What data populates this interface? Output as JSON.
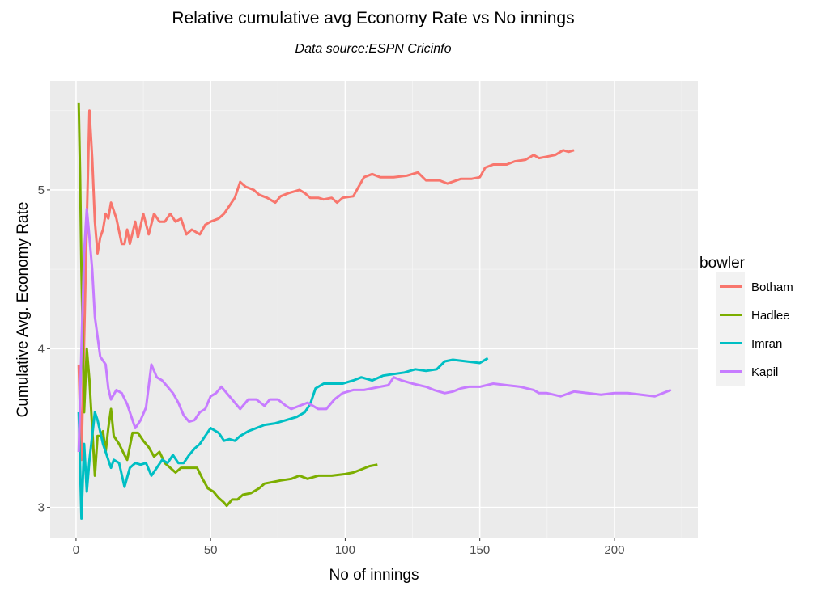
{
  "chart_data": {
    "type": "line",
    "title": "Relative cumulative avg Economy Rate vs No innings",
    "subtitle": "Data source:ESPN Cricinfo",
    "xlabel": "No of innings",
    "ylabel": "Cumulative Avg. Economy Rate",
    "xlim": [
      -9.6,
      231
    ],
    "ylim": [
      2.81,
      5.687
    ],
    "x_ticks": [
      0,
      50,
      100,
      150,
      200
    ],
    "x_tick_labels": [
      "0",
      "50",
      "100",
      "150",
      "200"
    ],
    "y_ticks": [
      3,
      4,
      5
    ],
    "y_tick_labels": [
      "3",
      "4",
      "5"
    ],
    "grid": true,
    "legend": {
      "title": "bowler",
      "placement": "right"
    },
    "series": [
      {
        "name": "Botham",
        "color": "#F8766D",
        "x": [
          1,
          2,
          4,
          5,
          6,
          7,
          8,
          9,
          10,
          11,
          12,
          13,
          15,
          17,
          18,
          19,
          20,
          22,
          23,
          25,
          27,
          29,
          31,
          33,
          35,
          37,
          39,
          41,
          43,
          46,
          48,
          50,
          53,
          55,
          57,
          59,
          61,
          63,
          66,
          68,
          71,
          74,
          76,
          79,
          83,
          85,
          87,
          90,
          92,
          95,
          97,
          99,
          103,
          105,
          107,
          110,
          113,
          118,
          123,
          127,
          130,
          135,
          138,
          143,
          147,
          150,
          152,
          155,
          160,
          163,
          167,
          170,
          172,
          175,
          178,
          181,
          183,
          185
        ],
        "y": [
          3.9,
          3.3,
          4.8,
          5.5,
          5.2,
          4.8,
          4.6,
          4.7,
          4.75,
          4.85,
          4.82,
          4.92,
          4.82,
          4.66,
          4.66,
          4.75,
          4.66,
          4.8,
          4.7,
          4.85,
          4.72,
          4.85,
          4.8,
          4.8,
          4.85,
          4.8,
          4.82,
          4.72,
          4.75,
          4.72,
          4.78,
          4.8,
          4.82,
          4.85,
          4.9,
          4.95,
          5.05,
          5.02,
          5.0,
          4.97,
          4.95,
          4.92,
          4.96,
          4.98,
          5.0,
          4.98,
          4.95,
          4.95,
          4.94,
          4.95,
          4.92,
          4.95,
          4.96,
          5.02,
          5.08,
          5.1,
          5.08,
          5.08,
          5.09,
          5.11,
          5.06,
          5.06,
          5.04,
          5.07,
          5.07,
          5.08,
          5.14,
          5.16,
          5.16,
          5.18,
          5.19,
          5.22,
          5.2,
          5.21,
          5.22,
          5.25,
          5.24,
          5.25
        ]
      },
      {
        "name": "Hadlee",
        "color": "#7CAE00",
        "x": [
          1,
          1.5,
          2,
          3,
          4,
          5,
          6,
          7,
          8,
          9,
          10,
          11,
          12,
          13,
          14,
          16,
          18,
          19,
          21,
          23,
          25,
          27,
          29,
          31,
          33,
          35,
          37,
          39,
          42,
          45,
          47,
          49,
          51,
          53,
          55,
          56,
          58,
          60,
          62,
          65,
          68,
          70,
          73,
          76,
          80,
          83,
          86,
          90,
          95,
          100,
          103,
          106,
          109,
          112
        ],
        "y": [
          5.55,
          5.1,
          4.5,
          3.6,
          4.0,
          3.8,
          3.5,
          3.2,
          3.45,
          3.45,
          3.48,
          3.35,
          3.5,
          3.62,
          3.45,
          3.4,
          3.33,
          3.3,
          3.47,
          3.47,
          3.42,
          3.38,
          3.32,
          3.35,
          3.28,
          3.25,
          3.22,
          3.25,
          3.25,
          3.25,
          3.18,
          3.12,
          3.1,
          3.06,
          3.03,
          3.01,
          3.05,
          3.05,
          3.08,
          3.09,
          3.12,
          3.15,
          3.16,
          3.17,
          3.18,
          3.2,
          3.18,
          3.2,
          3.2,
          3.21,
          3.22,
          3.24,
          3.26,
          3.27
        ]
      },
      {
        "name": "Imran",
        "color": "#00BFC4",
        "x": [
          1,
          2,
          3,
          4,
          5,
          7,
          8,
          10,
          12,
          13,
          14,
          16,
          18,
          20,
          22,
          24,
          26,
          28,
          30,
          32,
          34,
          36,
          38,
          40,
          42,
          44,
          46,
          48,
          50,
          53,
          55,
          57,
          59,
          61,
          64,
          67,
          70,
          74,
          78,
          82,
          85,
          87,
          89,
          92,
          95,
          99,
          103,
          106,
          110,
          114,
          118,
          122,
          126,
          130,
          134,
          137,
          140,
          145,
          150,
          153
        ],
        "y": [
          3.6,
          2.93,
          3.4,
          3.1,
          3.3,
          3.6,
          3.55,
          3.4,
          3.3,
          3.25,
          3.3,
          3.28,
          3.13,
          3.25,
          3.28,
          3.27,
          3.28,
          3.2,
          3.25,
          3.3,
          3.28,
          3.33,
          3.28,
          3.28,
          3.33,
          3.37,
          3.4,
          3.45,
          3.5,
          3.47,
          3.42,
          3.43,
          3.42,
          3.45,
          3.48,
          3.5,
          3.52,
          3.53,
          3.55,
          3.57,
          3.6,
          3.65,
          3.75,
          3.78,
          3.78,
          3.78,
          3.8,
          3.82,
          3.8,
          3.83,
          3.84,
          3.85,
          3.87,
          3.86,
          3.87,
          3.92,
          3.93,
          3.92,
          3.91,
          3.94
        ]
      },
      {
        "name": "Kapil",
        "color": "#C77CFF",
        "x": [
          1,
          2,
          3,
          4,
          5,
          6,
          7,
          9,
          11,
          12,
          13,
          15,
          17,
          19,
          21,
          22,
          24,
          26,
          28,
          30,
          32,
          34,
          36,
          38,
          40,
          42,
          44,
          46,
          48,
          50,
          52,
          54,
          56,
          58,
          61,
          64,
          67,
          70,
          72,
          75,
          78,
          80,
          83,
          86,
          90,
          93,
          96,
          99,
          103,
          107,
          110,
          113,
          116,
          118,
          121,
          125,
          130,
          133,
          137,
          140,
          143,
          146,
          150,
          155,
          160,
          165,
          170,
          172,
          175,
          180,
          185,
          190,
          195,
          200,
          205,
          210,
          215,
          218,
          221
        ],
        "y": [
          3.35,
          4.0,
          4.6,
          4.88,
          4.7,
          4.5,
          4.2,
          3.95,
          3.9,
          3.75,
          3.68,
          3.74,
          3.72,
          3.65,
          3.55,
          3.5,
          3.55,
          3.63,
          3.9,
          3.82,
          3.8,
          3.76,
          3.72,
          3.66,
          3.58,
          3.54,
          3.55,
          3.6,
          3.62,
          3.7,
          3.72,
          3.76,
          3.72,
          3.68,
          3.62,
          3.68,
          3.68,
          3.64,
          3.68,
          3.68,
          3.64,
          3.62,
          3.64,
          3.66,
          3.62,
          3.62,
          3.68,
          3.72,
          3.74,
          3.74,
          3.75,
          3.76,
          3.77,
          3.82,
          3.8,
          3.78,
          3.76,
          3.74,
          3.72,
          3.73,
          3.75,
          3.76,
          3.76,
          3.78,
          3.77,
          3.76,
          3.74,
          3.72,
          3.72,
          3.7,
          3.73,
          3.72,
          3.71,
          3.72,
          3.72,
          3.71,
          3.7,
          3.72,
          3.74
        ]
      }
    ]
  }
}
